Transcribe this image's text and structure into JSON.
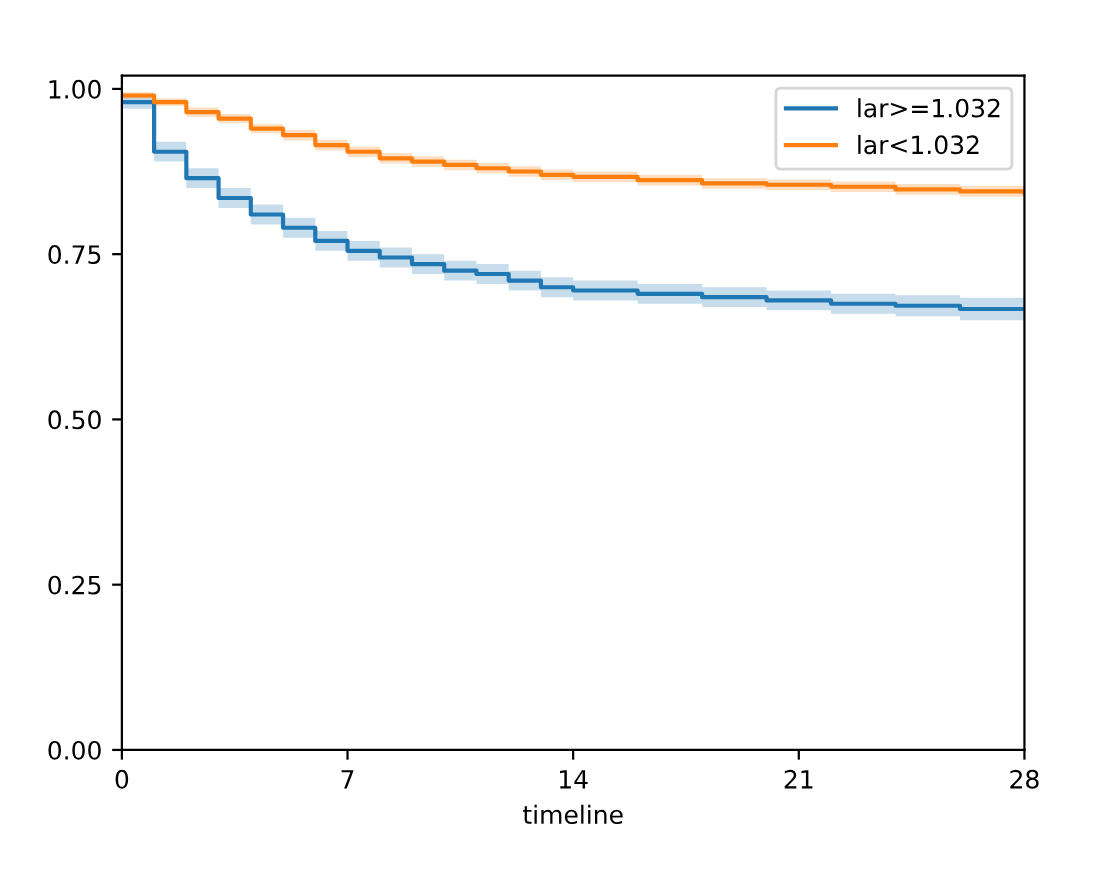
{
  "chart_data": {
    "type": "step",
    "xlabel": "timeline",
    "xlim": [
      0,
      28
    ],
    "ylim": [
      0,
      1.02
    ],
    "xticks": [
      0,
      7,
      14,
      21,
      28
    ],
    "yticks": [
      {
        "value": 0,
        "label": "0.00"
      },
      {
        "value": 0.25,
        "label": "0.25"
      },
      {
        "value": 0.5,
        "label": "0.50"
      },
      {
        "value": 0.75,
        "label": "0.75"
      },
      {
        "value": 1,
        "label": "1.00"
      }
    ],
    "grid": false,
    "legend": "top right",
    "series": [
      {
        "name": "lar>=1.032",
        "color": "#1f77b4",
        "x": [
          0,
          1,
          2,
          3,
          4,
          5,
          6,
          7,
          8,
          9,
          10,
          11,
          12,
          13,
          14,
          16,
          18,
          20,
          22,
          24,
          26,
          28
        ],
        "values": [
          0.98,
          0.905,
          0.865,
          0.835,
          0.81,
          0.79,
          0.77,
          0.755,
          0.745,
          0.735,
          0.725,
          0.72,
          0.71,
          0.7,
          0.695,
          0.69,
          0.685,
          0.68,
          0.675,
          0.672,
          0.667,
          0.667
        ],
        "lower": [
          0.97,
          0.89,
          0.85,
          0.82,
          0.795,
          0.775,
          0.755,
          0.74,
          0.73,
          0.72,
          0.71,
          0.705,
          0.695,
          0.685,
          0.68,
          0.675,
          0.67,
          0.665,
          0.66,
          0.656,
          0.65,
          0.65
        ],
        "upper": [
          0.99,
          0.92,
          0.88,
          0.85,
          0.825,
          0.805,
          0.785,
          0.77,
          0.76,
          0.75,
          0.74,
          0.735,
          0.725,
          0.715,
          0.71,
          0.705,
          0.7,
          0.695,
          0.69,
          0.688,
          0.684,
          0.684
        ]
      },
      {
        "name": "lar<1.032",
        "color": "#ff7f0e",
        "x": [
          0,
          1,
          2,
          3,
          4,
          5,
          6,
          7,
          8,
          9,
          10,
          11,
          12,
          13,
          14,
          16,
          18,
          20,
          22,
          24,
          26,
          28
        ],
        "values": [
          0.99,
          0.98,
          0.965,
          0.955,
          0.94,
          0.93,
          0.915,
          0.905,
          0.895,
          0.89,
          0.885,
          0.88,
          0.875,
          0.87,
          0.867,
          0.862,
          0.857,
          0.855,
          0.852,
          0.848,
          0.845,
          0.843
        ],
        "lower": [
          0.985,
          0.974,
          0.958,
          0.948,
          0.933,
          0.922,
          0.907,
          0.897,
          0.887,
          0.882,
          0.877,
          0.872,
          0.867,
          0.862,
          0.859,
          0.854,
          0.849,
          0.847,
          0.844,
          0.84,
          0.837,
          0.835
        ],
        "upper": [
          0.995,
          0.986,
          0.972,
          0.962,
          0.947,
          0.938,
          0.923,
          0.913,
          0.903,
          0.898,
          0.893,
          0.888,
          0.883,
          0.878,
          0.875,
          0.87,
          0.865,
          0.863,
          0.86,
          0.856,
          0.853,
          0.851
        ]
      }
    ]
  }
}
